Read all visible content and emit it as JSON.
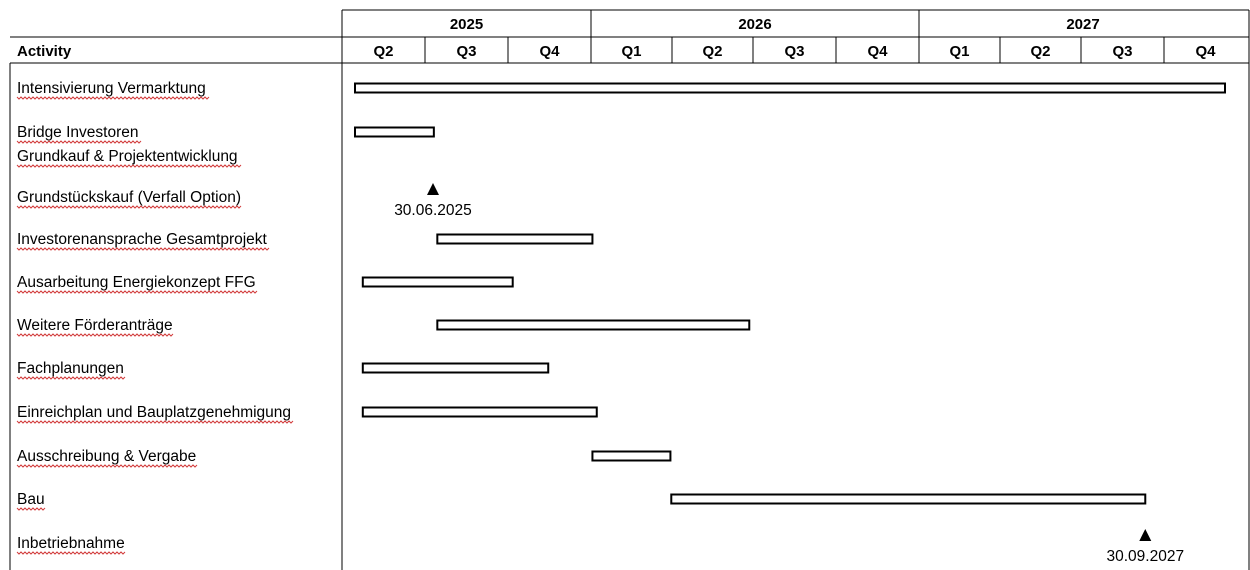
{
  "chart_data": {
    "type": "gantt",
    "first_column_header": "Activity",
    "years": [
      {
        "label": "2025",
        "quarters": [
          "Q2",
          "Q3",
          "Q4"
        ]
      },
      {
        "label": "2026",
        "quarters": [
          "Q1",
          "Q2",
          "Q3",
          "Q4"
        ]
      },
      {
        "label": "2027",
        "quarters": [
          "Q1",
          "Q2",
          "Q3",
          "Q4"
        ]
      }
    ],
    "timeline_start": "2025-04-01",
    "timeline_end": "2027-12-31",
    "activities": [
      {
        "label": "Intensivierung Vermarktung",
        "start": "2025-04-01",
        "end": "2027-12-31"
      },
      {
        "label": "Bridge Investoren",
        "start": "2025-04-01",
        "end": "2025-07-01"
      },
      {
        "label": "Grundkauf & Projektentwicklung",
        "start": null,
        "end": null
      },
      {
        "label": "Grundstückskauf (Verfall Option)",
        "milestone": "2025-06-30",
        "milestone_label": "30.06.2025"
      },
      {
        "label": "Investorenansprache Gesamtprojekt",
        "start": "2025-07-05",
        "end": "2025-12-31"
      },
      {
        "label": "Ausarbeitung Energiekonzept FFG",
        "start": "2025-04-10",
        "end": "2025-09-30"
      },
      {
        "label": "Weitere Förderanträge",
        "start": "2025-07-05",
        "end": "2026-06-30"
      },
      {
        "label": "Fachplanungen",
        "start": "2025-04-10",
        "end": "2025-11-10"
      },
      {
        "label": "Einreichplan und Bauplatzgenehmigung",
        "start": "2025-04-10",
        "end": "2026-01-05"
      },
      {
        "label": "Ausschreibung & Vergabe",
        "start": "2025-12-31",
        "end": "2026-03-31"
      },
      {
        "label": "Bau",
        "start": "2026-04-01",
        "end": "2027-09-30"
      },
      {
        "label": "Inbetriebnahme",
        "milestone": "2027-09-30",
        "milestone_label": "30.09.2027"
      }
    ]
  }
}
